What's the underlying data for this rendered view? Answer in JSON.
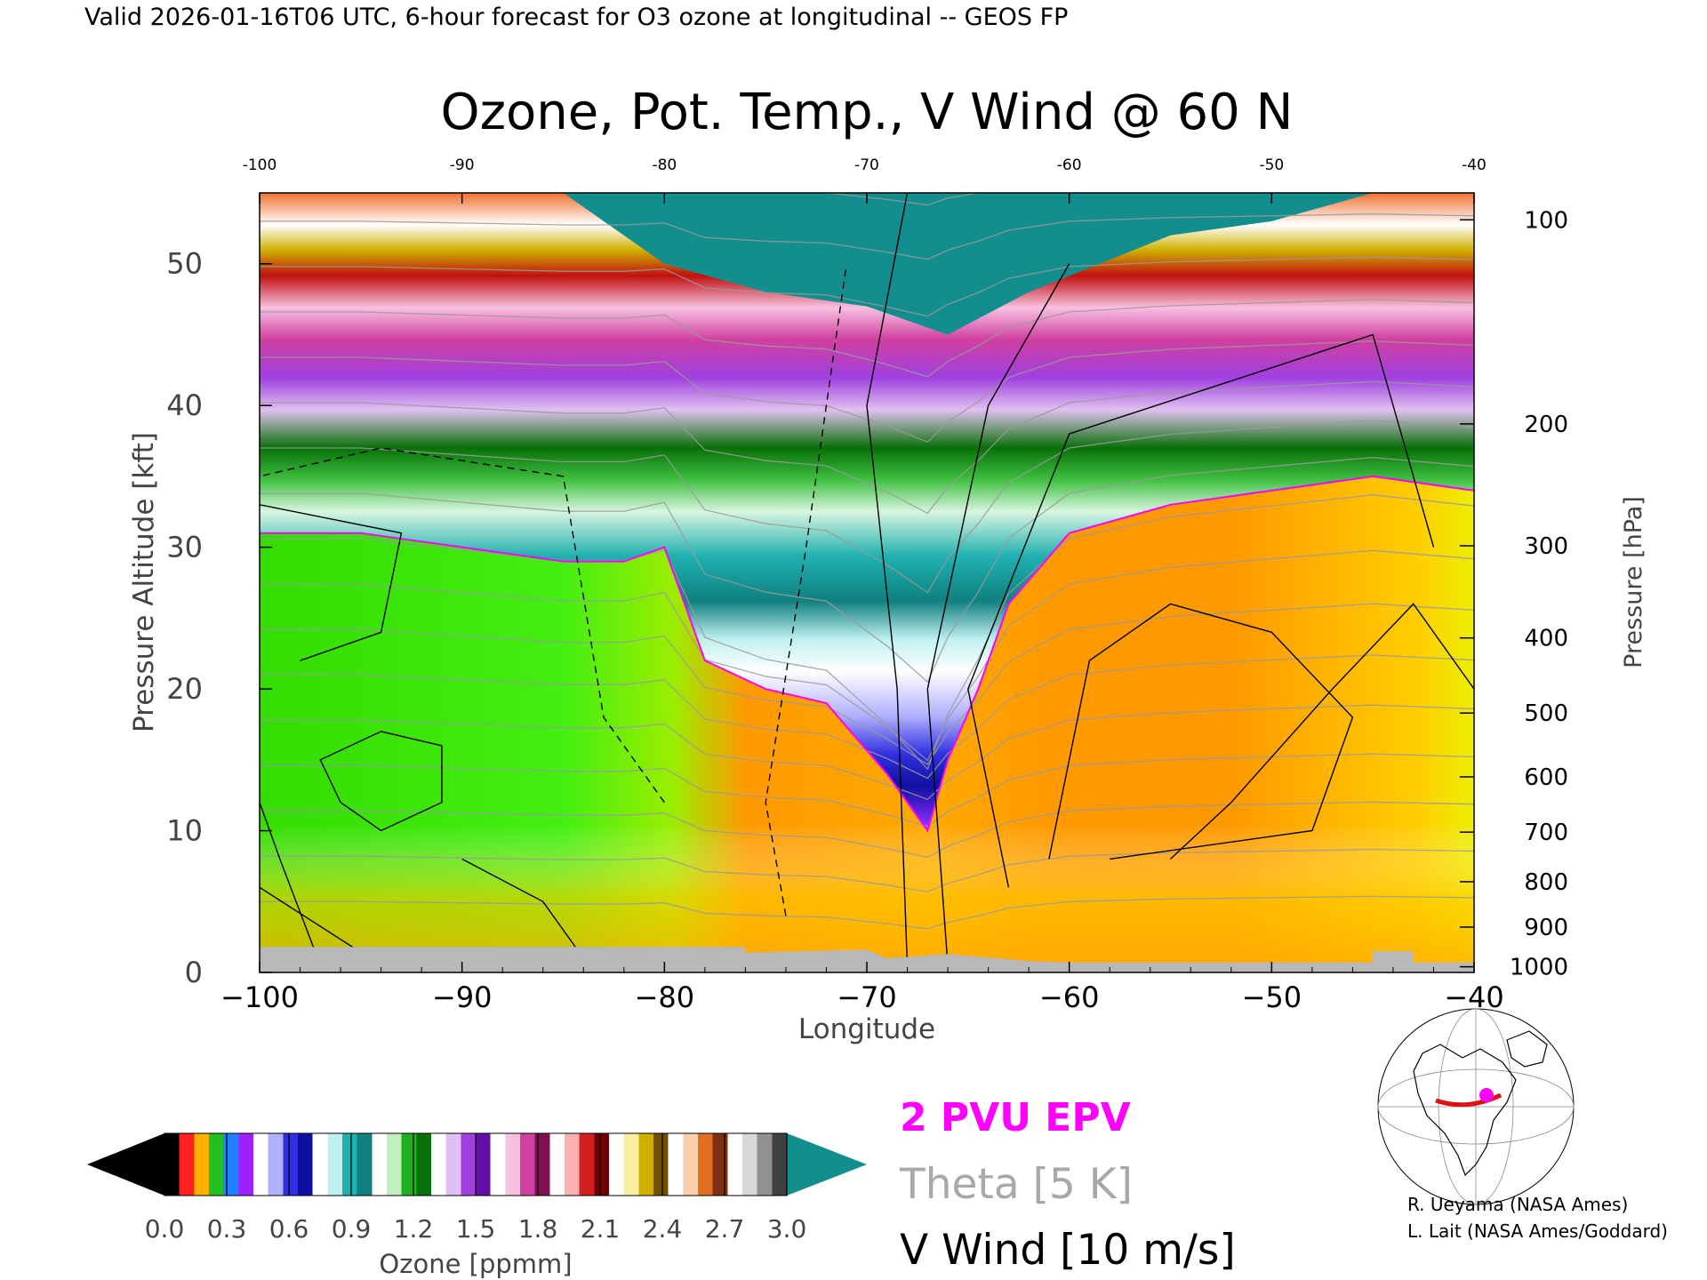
{
  "header": {
    "valid_line": "Valid 2026-01-16T06 UTC, 6-hour forecast for O3 ozone at longitudinal -- GEOS FP"
  },
  "chart_data": {
    "type": "heatmap",
    "title": "Ozone, Pot. Temp., V Wind @ 60 N",
    "xlabel": "Longitude",
    "ylabel_left": "Pressure Altitude [kft]",
    "ylabel_right": "Pressure [hPa]",
    "xlim": [
      -100,
      -40
    ],
    "ylim": [
      0,
      55
    ],
    "x_ticks": [
      -100,
      -90,
      -80,
      -70,
      -60,
      -50,
      -40
    ],
    "x_tick_labels_bottom": [
      "−100",
      "−90",
      "−80",
      "−70",
      "−60",
      "−50",
      "−40"
    ],
    "x_tick_labels_top": [
      "-100",
      "-90",
      "-80",
      "-70",
      "-60",
      "-50",
      "-40"
    ],
    "y_ticks": [
      0,
      10,
      20,
      30,
      40,
      50
    ],
    "y_tick_labels": [
      "0",
      "10",
      "20",
      "30",
      "40",
      "50"
    ],
    "pressure_ticks": [
      {
        "hpa": "100",
        "kft": 53.1
      },
      {
        "hpa": "200",
        "kft": 38.7
      },
      {
        "hpa": "300",
        "kft": 30.1
      },
      {
        "hpa": "400",
        "kft": 23.6
      },
      {
        "hpa": "500",
        "kft": 18.3
      },
      {
        "hpa": "600",
        "kft": 13.8
      },
      {
        "hpa": "700",
        "kft": 9.9
      },
      {
        "hpa": "800",
        "kft": 6.4
      },
      {
        "hpa": "900",
        "kft": 3.2
      },
      {
        "hpa": "1000",
        "kft": 0.4
      }
    ],
    "tropopause_kft": [
      {
        "lon": -100,
        "kft": 31
      },
      {
        "lon": -95,
        "kft": 31
      },
      {
        "lon": -90,
        "kft": 30
      },
      {
        "lon": -85,
        "kft": 29
      },
      {
        "lon": -82,
        "kft": 29
      },
      {
        "lon": -80,
        "kft": 30
      },
      {
        "lon": -78,
        "kft": 22
      },
      {
        "lon": -75,
        "kft": 20
      },
      {
        "lon": -72,
        "kft": 19
      },
      {
        "lon": -69,
        "kft": 14
      },
      {
        "lon": -67,
        "kft": 10
      },
      {
        "lon": -66,
        "kft": 15
      },
      {
        "lon": -64.5,
        "kft": 20
      },
      {
        "lon": -63,
        "kft": 26
      },
      {
        "lon": -60,
        "kft": 31
      },
      {
        "lon": -55,
        "kft": 33
      },
      {
        "lon": -50,
        "kft": 34
      },
      {
        "lon": -45,
        "kft": 35
      },
      {
        "lon": -40,
        "kft": 34
      }
    ],
    "top_boundary_kft": [
      {
        "lon": -100,
        "kft": 55
      },
      {
        "lon": -90,
        "kft": 55
      },
      {
        "lon": -85,
        "kft": 55
      },
      {
        "lon": -80,
        "kft": 50
      },
      {
        "lon": -75,
        "kft": 48
      },
      {
        "lon": -70,
        "kft": 47
      },
      {
        "lon": -66,
        "kft": 45
      },
      {
        "lon": -62,
        "kft": 48
      },
      {
        "lon": -55,
        "kft": 52
      },
      {
        "lon": -50,
        "kft": 53
      },
      {
        "lon": -45,
        "kft": 55
      },
      {
        "lon": -40,
        "kft": 55
      }
    ],
    "colorbar": {
      "label": "Ozone [ppmm]",
      "min": 0.0,
      "max": 3.0,
      "tick_labels": [
        "0.0",
        "0.3",
        "0.6",
        "0.9",
        "1.2",
        "1.5",
        "1.8",
        "2.1",
        "2.4",
        "2.7",
        "3.0"
      ],
      "colors": [
        "#000000",
        "#ff2020",
        "#ffb000",
        "#20c020",
        "#2080ff",
        "#a020ff",
        "#ffffff",
        "#b0b0ff",
        "#3030e0",
        "#1010a0",
        "#ffffff",
        "#c0f0f0",
        "#20b0b0",
        "#108080",
        "#ffffff",
        "#c0f0c0",
        "#20b020",
        "#087008",
        "#ffffff",
        "#e0c0f0",
        "#a040e0",
        "#6010a0",
        "#ffffff",
        "#f8c0e0",
        "#d040a0",
        "#801050",
        "#ffffff",
        "#f8b0b0",
        "#d02020",
        "#700000",
        "#ffffff",
        "#f8f0a0",
        "#d0b000",
        "#705000",
        "#ffffff",
        "#f8d0b0",
        "#e07020",
        "#803010",
        "#ffffff",
        "#d8d8d8",
        "#909090",
        "#404040"
      ],
      "over_color": "#138e8e",
      "under_color": "#000000"
    }
  },
  "legend": {
    "epv": "2 PVU EPV",
    "theta": "Theta [5 K]",
    "vwind": "V Wind [10 m/s]",
    "epv_color": "#ff00ff",
    "theta_color": "#a8a8a8",
    "vwind_color": "#000000"
  },
  "credits": {
    "line1": "R. Ueyama (NASA Ames)",
    "line2": "L. Lait (NASA Ames/Goddard)"
  },
  "colors": {
    "stratosphere_top": "#138e8e",
    "ground": "#b8b8b8",
    "troposphere_orange": "#ff9900",
    "troposphere_green": "#33ee00"
  }
}
